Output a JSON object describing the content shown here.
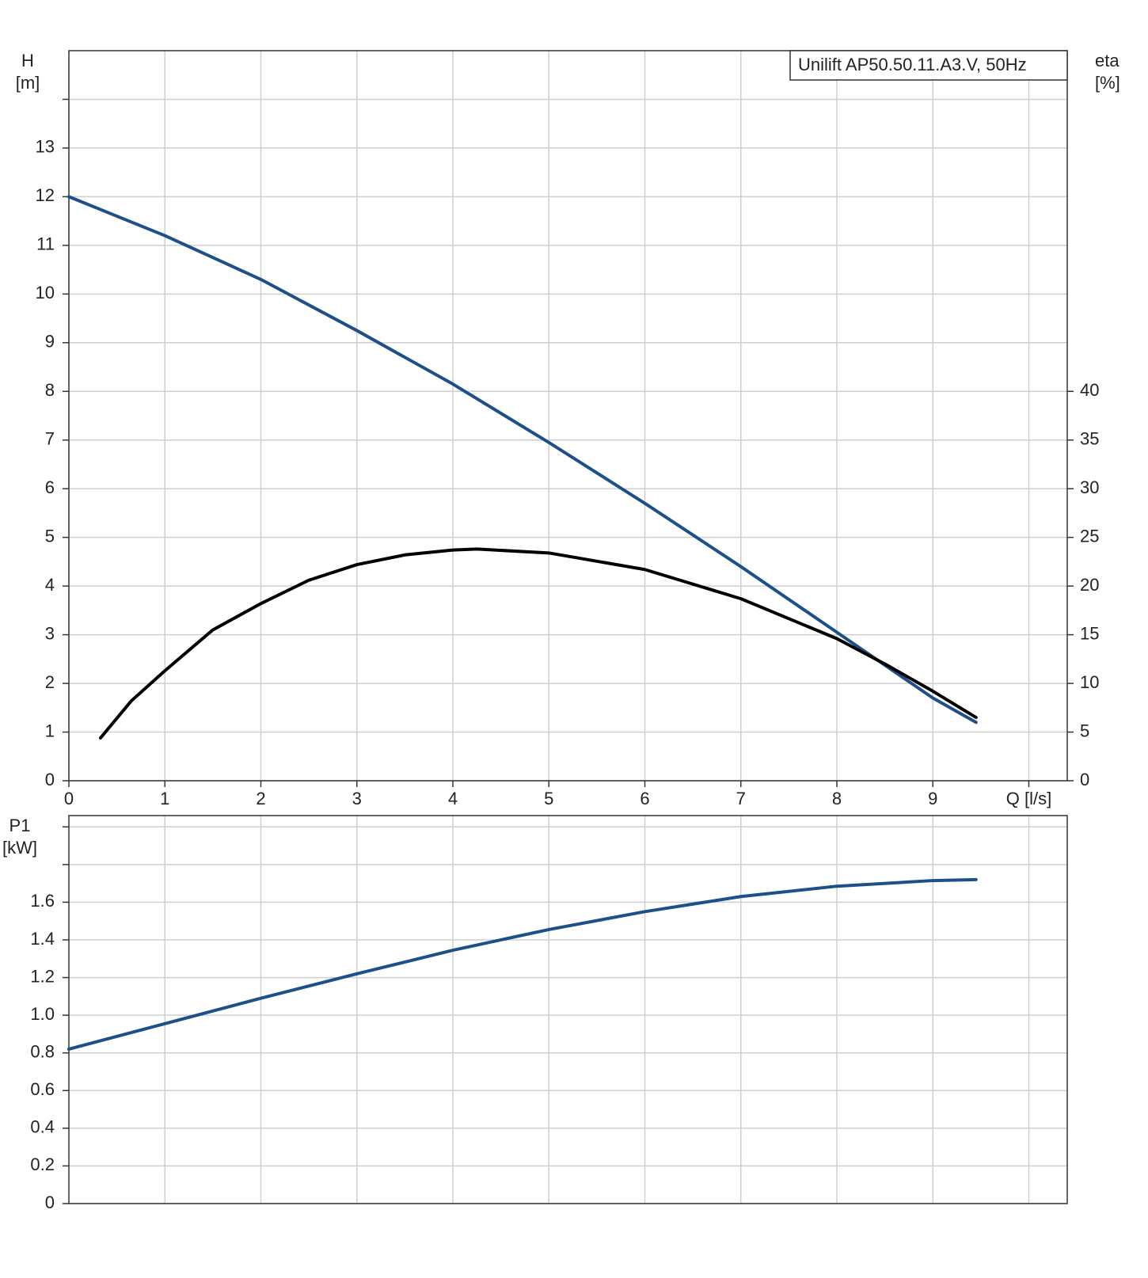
{
  "chart_data": [
    {
      "type": "line",
      "legend_title": "Unilift AP50.50.11.A3.V, 50Hz",
      "y_label": [
        "H",
        "[m]"
      ],
      "y2_label": [
        "eta",
        "[%]"
      ],
      "xlim": [
        0,
        10.4
      ],
      "xticks": [
        0,
        1,
        2,
        3,
        4,
        5,
        6,
        7,
        8,
        9,
        {
          "value": 10,
          "label": "Q [l/s]"
        }
      ],
      "ylim": [
        0,
        15
      ],
      "yticks": [
        0,
        1,
        2,
        3,
        4,
        5,
        6,
        7,
        8,
        9,
        10,
        11,
        12,
        13
      ],
      "ygrid_only": [
        14
      ],
      "y2lim": [
        0,
        75
      ],
      "y2ticks": [
        0,
        5,
        10,
        15,
        20,
        25,
        30,
        35,
        40
      ],
      "grid": true,
      "series": [
        {
          "name": "H",
          "color": "#1d4f88",
          "x": [
            0,
            1,
            2,
            3,
            4,
            5,
            6,
            7,
            8,
            9,
            9.45
          ],
          "values": [
            12,
            11.2,
            10.3,
            9.25,
            8.15,
            6.95,
            5.7,
            4.4,
            3.05,
            1.7,
            1.2
          ]
        },
        {
          "name": "eta",
          "color": "#000000",
          "axis": "y2",
          "x": [
            0.33,
            0.65,
            1,
            1.5,
            2,
            2.5,
            3,
            3.5,
            4,
            4.25,
            5,
            6,
            7,
            8,
            8.5,
            9,
            9.45
          ],
          "values": [
            4.4,
            8.2,
            11.3,
            15.5,
            18.2,
            20.6,
            22.2,
            23.2,
            23.7,
            23.8,
            23.4,
            21.7,
            18.7,
            14.6,
            12.0,
            9.2,
            6.5
          ]
        }
      ]
    },
    {
      "type": "line",
      "y_label": [
        "P1",
        "[kW]"
      ],
      "xlim": [
        0,
        10.4
      ],
      "xgrid_only": [
        1,
        2,
        3,
        4,
        5,
        6,
        7,
        8,
        9,
        10
      ],
      "ylim": [
        0,
        2.06
      ],
      "yticks": [
        0,
        0.2,
        0.4,
        0.6,
        0.8,
        {
          "value": 1,
          "label": "1.0"
        },
        1.2,
        1.4,
        1.6
      ],
      "ygrid_only": [
        1.8,
        2
      ],
      "grid": true,
      "series": [
        {
          "name": "P1",
          "color": "#1d4f88",
          "x": [
            0,
            1,
            2,
            3,
            4,
            5,
            6,
            7,
            8,
            9,
            9.45
          ],
          "values": [
            0.82,
            0.955,
            1.09,
            1.22,
            1.345,
            1.455,
            1.55,
            1.63,
            1.685,
            1.715,
            1.72
          ]
        }
      ]
    }
  ]
}
